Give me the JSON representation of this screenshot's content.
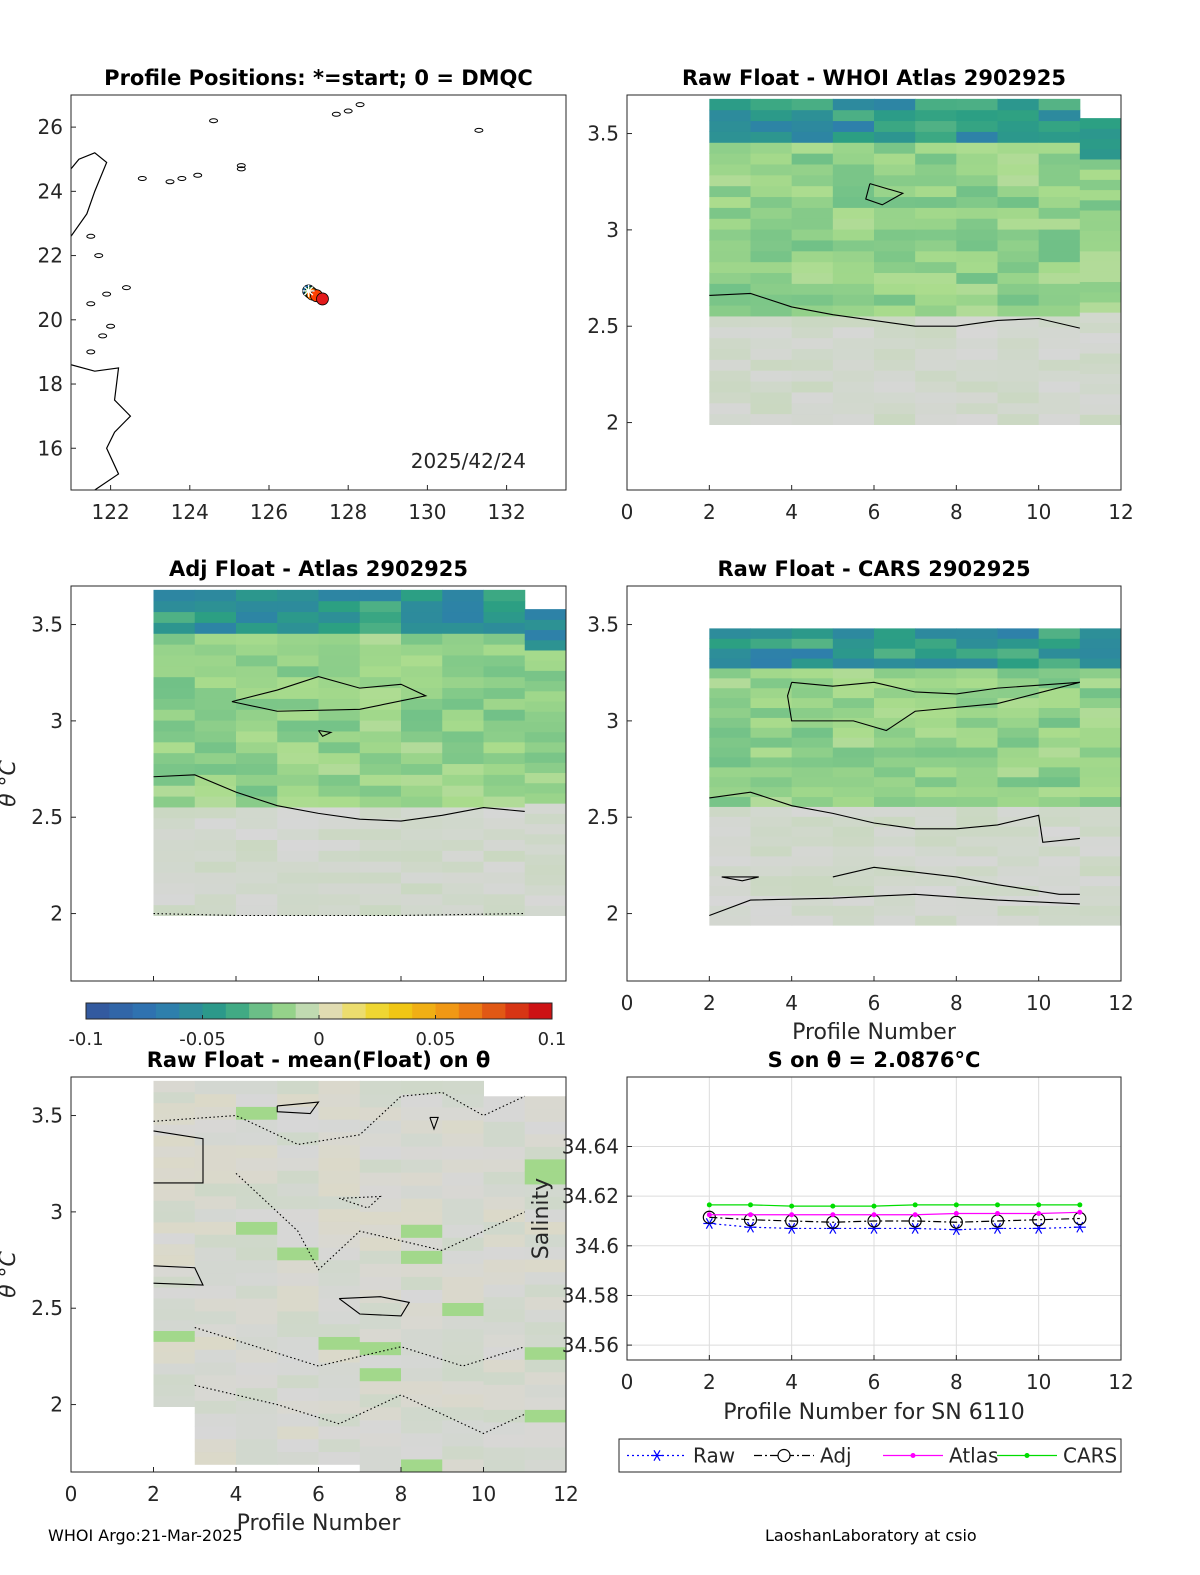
{
  "chart_data": [
    {
      "type": "scatter",
      "title": "Profile Positions: *=start; 0 = DMQC",
      "xlabel": "",
      "ylabel": "",
      "xlim": [
        121,
        133.5
      ],
      "ylim": [
        14.7,
        27
      ],
      "xticks": [
        "122",
        "124",
        "126",
        "128",
        "130",
        "132"
      ],
      "yticks": [
        "16",
        "18",
        "20",
        "22",
        "24",
        "26"
      ],
      "annotation": "2025/42/24",
      "points": [
        {
          "x": 127.0,
          "y": 20.9,
          "color": "#1f77b4"
        },
        {
          "x": 127.05,
          "y": 20.85,
          "color": "#2ca02c"
        },
        {
          "x": 127.1,
          "y": 20.8,
          "color": "#ff7f0e"
        },
        {
          "x": 127.2,
          "y": 20.75,
          "color": "#ff4000"
        },
        {
          "x": 127.35,
          "y": 20.65,
          "color": "#e31a1c"
        }
      ],
      "start_marker": {
        "x": 127.0,
        "y": 20.9
      }
    },
    {
      "type": "heatmap",
      "title": "Raw Float - WHOI Atlas  2902925",
      "xlabel": "",
      "ylabel": "",
      "xlim": [
        0,
        12
      ],
      "ylim": [
        1.65,
        3.7
      ],
      "xticks": [
        "0",
        "2",
        "4",
        "6",
        "8",
        "10",
        "12"
      ],
      "yticks": [
        "2",
        "2.5",
        "3",
        "3.5"
      ],
      "profiles": [
        2,
        3,
        4,
        5,
        6,
        7,
        8,
        9,
        10,
        11
      ],
      "theta_top": [
        3.68,
        3.68,
        3.68,
        3.68,
        3.68,
        3.68,
        3.68,
        3.68,
        3.68,
        3.58
      ],
      "theta_bottom": 1.99
    },
    {
      "type": "heatmap",
      "title": "Adj Float - Atlas  2902925",
      "xlabel": "",
      "ylabel": "θ °C",
      "xlim": [
        0,
        12
      ],
      "ylim": [
        1.65,
        3.7
      ],
      "yticks": [
        "2",
        "2.5",
        "3",
        "3.5"
      ],
      "profiles": [
        2,
        3,
        4,
        5,
        6,
        7,
        8,
        9,
        10,
        11
      ],
      "theta_top": [
        3.68,
        3.68,
        3.68,
        3.68,
        3.68,
        3.68,
        3.68,
        3.68,
        3.68,
        3.58
      ],
      "theta_bottom": 1.99
    },
    {
      "type": "heatmap",
      "title": "Raw Float - CARS  2902925",
      "xlabel": "Profile Number",
      "ylabel": "",
      "xlim": [
        0,
        12
      ],
      "ylim": [
        1.65,
        3.7
      ],
      "xticks": [
        "0",
        "2",
        "4",
        "6",
        "8",
        "10",
        "12"
      ],
      "yticks": [
        "2",
        "2.5",
        "3",
        "3.5"
      ],
      "profiles": [
        2,
        3,
        4,
        5,
        6,
        7,
        8,
        9,
        10,
        11
      ],
      "theta_top": [
        3.48,
        3.48,
        3.48,
        3.48,
        3.48,
        3.48,
        3.48,
        3.48,
        3.48,
        3.48
      ],
      "theta_bottom": 1.94
    },
    {
      "type": "heatmap",
      "title": "Raw Float - mean(Float) on θ",
      "xlabel": "Profile Number",
      "ylabel": "θ °C",
      "xlim": [
        0,
        12
      ],
      "ylim": [
        1.65,
        3.7
      ],
      "xticks": [
        "0",
        "2",
        "4",
        "6",
        "8",
        "10",
        "12"
      ],
      "yticks": [
        "2",
        "2.5",
        "3",
        "3.5"
      ],
      "profiles": [
        2,
        3,
        4,
        5,
        6,
        7,
        8,
        9,
        10,
        11
      ],
      "theta_top": [
        3.68,
        3.68,
        3.68,
        3.68,
        3.68,
        3.68,
        3.68,
        3.68,
        3.6,
        3.6
      ],
      "theta_bottom": [
        1.99,
        1.69,
        1.69,
        1.69,
        1.69,
        1.65,
        1.65,
        1.65,
        1.65,
        1.65
      ]
    },
    {
      "type": "line",
      "title": "S on θ = 2.0876°C",
      "xlabel": "Profile Number for SN 6110",
      "ylabel": "Salinity",
      "xlim": [
        0,
        12
      ],
      "ylim": [
        34.554,
        34.668
      ],
      "xticks": [
        "0",
        "2",
        "4",
        "6",
        "8",
        "10",
        "12"
      ],
      "yticks": [
        "34.56",
        "34.58",
        "34.6",
        "34.62",
        "34.64"
      ],
      "x": [
        2,
        3,
        4,
        5,
        6,
        7,
        8,
        9,
        10,
        11
      ],
      "series": [
        {
          "name": "Raw",
          "color": "#0000ff",
          "marker": "star",
          "dash": "dotted",
          "values": [
            34.609,
            34.6075,
            34.607,
            34.607,
            34.607,
            34.607,
            34.6065,
            34.607,
            34.607,
            34.6075
          ]
        },
        {
          "name": "Adj",
          "color": "#000000",
          "marker": "circle",
          "dash": "dashdot",
          "values": [
            34.6115,
            34.6105,
            34.61,
            34.6095,
            34.61,
            34.61,
            34.6095,
            34.61,
            34.6105,
            34.611
          ]
        },
        {
          "name": "Atlas",
          "color": "#ff00ff",
          "marker": "dot",
          "dash": "solid",
          "values": [
            34.6125,
            34.6125,
            34.6125,
            34.6125,
            34.6125,
            34.6125,
            34.613,
            34.613,
            34.613,
            34.6135
          ]
        },
        {
          "name": "CARS",
          "color": "#00dd00",
          "marker": "dot",
          "dash": "solid",
          "values": [
            34.6165,
            34.6165,
            34.616,
            34.616,
            34.616,
            34.6165,
            34.6165,
            34.6165,
            34.6165,
            34.6165
          ]
        }
      ]
    }
  ],
  "colorbar": {
    "ticks": [
      "-0.1",
      "-0.05",
      "0",
      "0.05",
      "0.1"
    ]
  },
  "footer": {
    "left": "WHOI Argo:21-Mar-2025",
    "right": "LaoshanLaboratory at csio"
  }
}
